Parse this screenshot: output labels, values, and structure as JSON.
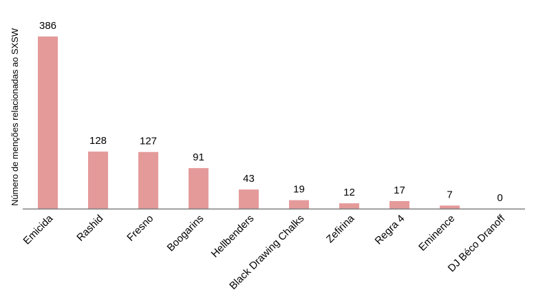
{
  "chart_data": {
    "type": "bar",
    "title": "",
    "xlabel": "",
    "ylabel": "Número de menções relacionadas ao SXSW",
    "categories": [
      "Emicida",
      "Rashid",
      "Fresno",
      "Boogarins",
      "Hellbenders",
      "Black Drawing Chalks",
      "Zefirina",
      "Regra 4",
      "Eminence",
      "DJ Béco Dranoff"
    ],
    "values": [
      386,
      128,
      127,
      91,
      43,
      19,
      12,
      17,
      7,
      0
    ],
    "ylim": [
      0,
      400
    ],
    "grid": false,
    "legend": "none",
    "bar_color": "#E59A9A",
    "axis_color": "#7F7F7F"
  }
}
